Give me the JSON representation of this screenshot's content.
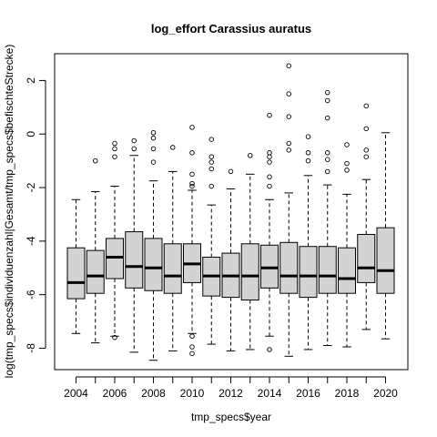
{
  "chart_data": {
    "type": "boxplot",
    "title": "log_effort Carassius auratus",
    "xlabel": "tmp_specs$year",
    "ylabel": "log(tmp_specs$individuenzahl|Gesamt/tmp_specs$befischteStrecke)",
    "ylim": [
      -8.8,
      3.0
    ],
    "yticks": [
      -8,
      -6,
      -4,
      -2,
      0,
      2
    ],
    "xtick_labels": [
      "2004",
      "2006",
      "2008",
      "2010",
      "2012",
      "2014",
      "2016",
      "2018",
      "2020"
    ],
    "grid": false,
    "box_fill": "#d3d3d3",
    "boxes": [
      {
        "year": "2004",
        "whisker_low": -7.45,
        "q1": -6.15,
        "median": -5.55,
        "q3": -4.25,
        "whisker_high": -2.45,
        "outliers": []
      },
      {
        "year": "2005",
        "whisker_low": -7.8,
        "q1": -5.95,
        "median": -5.3,
        "q3": -4.35,
        "whisker_high": -2.15,
        "outliers": [
          -1.0
        ]
      },
      {
        "year": "2006",
        "whisker_low": -7.55,
        "q1": -5.4,
        "median": -4.6,
        "q3": -3.9,
        "whisker_high": -1.95,
        "outliers": [
          -7.6,
          -0.85,
          -0.55,
          -0.35
        ]
      },
      {
        "year": "2007",
        "whisker_low": -8.15,
        "q1": -5.75,
        "median": -4.95,
        "q3": -3.65,
        "whisker_high": -0.8,
        "outliers": [
          -0.55,
          -0.25
        ]
      },
      {
        "year": "2008",
        "whisker_low": -8.45,
        "q1": -5.85,
        "median": -5.0,
        "q3": -3.9,
        "whisker_high": -1.75,
        "outliers": [
          -1.05,
          -0.55,
          -0.15,
          0.05
        ]
      },
      {
        "year": "2009",
        "whisker_low": -8.1,
        "q1": -5.95,
        "median": -5.3,
        "q3": -4.1,
        "whisker_high": -1.4,
        "outliers": [
          -0.5
        ]
      },
      {
        "year": "2010",
        "whisker_low": -7.45,
        "q1": -5.55,
        "median": -4.85,
        "q3": -4.1,
        "whisker_high": -2.1,
        "outliers": [
          -8.2,
          -7.95,
          -7.55,
          -1.95,
          -1.85,
          -1.5,
          -0.7,
          0.25
        ]
      },
      {
        "year": "2011",
        "whisker_low": -7.85,
        "q1": -6.05,
        "median": -5.3,
        "q3": -4.6,
        "whisker_high": -2.65,
        "outliers": [
          -1.95,
          -1.3,
          -1.05,
          -0.85,
          -0.2
        ]
      },
      {
        "year": "2012",
        "whisker_low": -8.1,
        "q1": -6.1,
        "median": -5.3,
        "q3": -4.45,
        "whisker_high": -2.05,
        "outliers": [
          -1.4
        ]
      },
      {
        "year": "2013",
        "whisker_low": -8.05,
        "q1": -6.2,
        "median": -5.3,
        "q3": -4.1,
        "whisker_high": -1.5,
        "outliers": [
          -0.8
        ]
      },
      {
        "year": "2014",
        "whisker_low": -7.55,
        "q1": -5.75,
        "median": -5.0,
        "q3": -4.15,
        "whisker_high": -2.45,
        "outliers": [
          -8.05,
          -1.95,
          -1.6,
          -1.05,
          -0.85,
          -0.7,
          0.7
        ]
      },
      {
        "year": "2015",
        "whisker_low": -8.3,
        "q1": -5.95,
        "median": -5.3,
        "q3": -4.05,
        "whisker_high": -2.2,
        "outliers": [
          -0.6,
          -0.35,
          0.65,
          1.5,
          2.55
        ]
      },
      {
        "year": "2016",
        "whisker_low": -8.05,
        "q1": -6.1,
        "median": -5.3,
        "q3": -4.2,
        "whisker_high": -1.55,
        "outliers": [
          -1.0,
          -0.7,
          -0.1
        ]
      },
      {
        "year": "2017",
        "whisker_low": -7.9,
        "q1": -5.95,
        "median": -5.3,
        "q3": -4.2,
        "whisker_high": -1.9,
        "outliers": [
          -1.4,
          -0.95,
          -0.7,
          0.6,
          1.25,
          1.55
        ]
      },
      {
        "year": "2018",
        "whisker_low": -7.95,
        "q1": -5.95,
        "median": -5.4,
        "q3": -4.25,
        "whisker_high": -2.25,
        "outliers": [
          -1.35,
          -1.1,
          -0.4
        ]
      },
      {
        "year": "2019",
        "whisker_low": -7.3,
        "q1": -5.55,
        "median": -5.0,
        "q3": -3.75,
        "whisker_high": -1.7,
        "outliers": [
          -0.85,
          -0.6,
          0.2,
          1.05
        ]
      },
      {
        "year": "2020",
        "whisker_low": -7.65,
        "q1": -5.95,
        "median": -5.1,
        "q3": -3.5,
        "whisker_high": 0.05,
        "outliers": []
      }
    ]
  }
}
